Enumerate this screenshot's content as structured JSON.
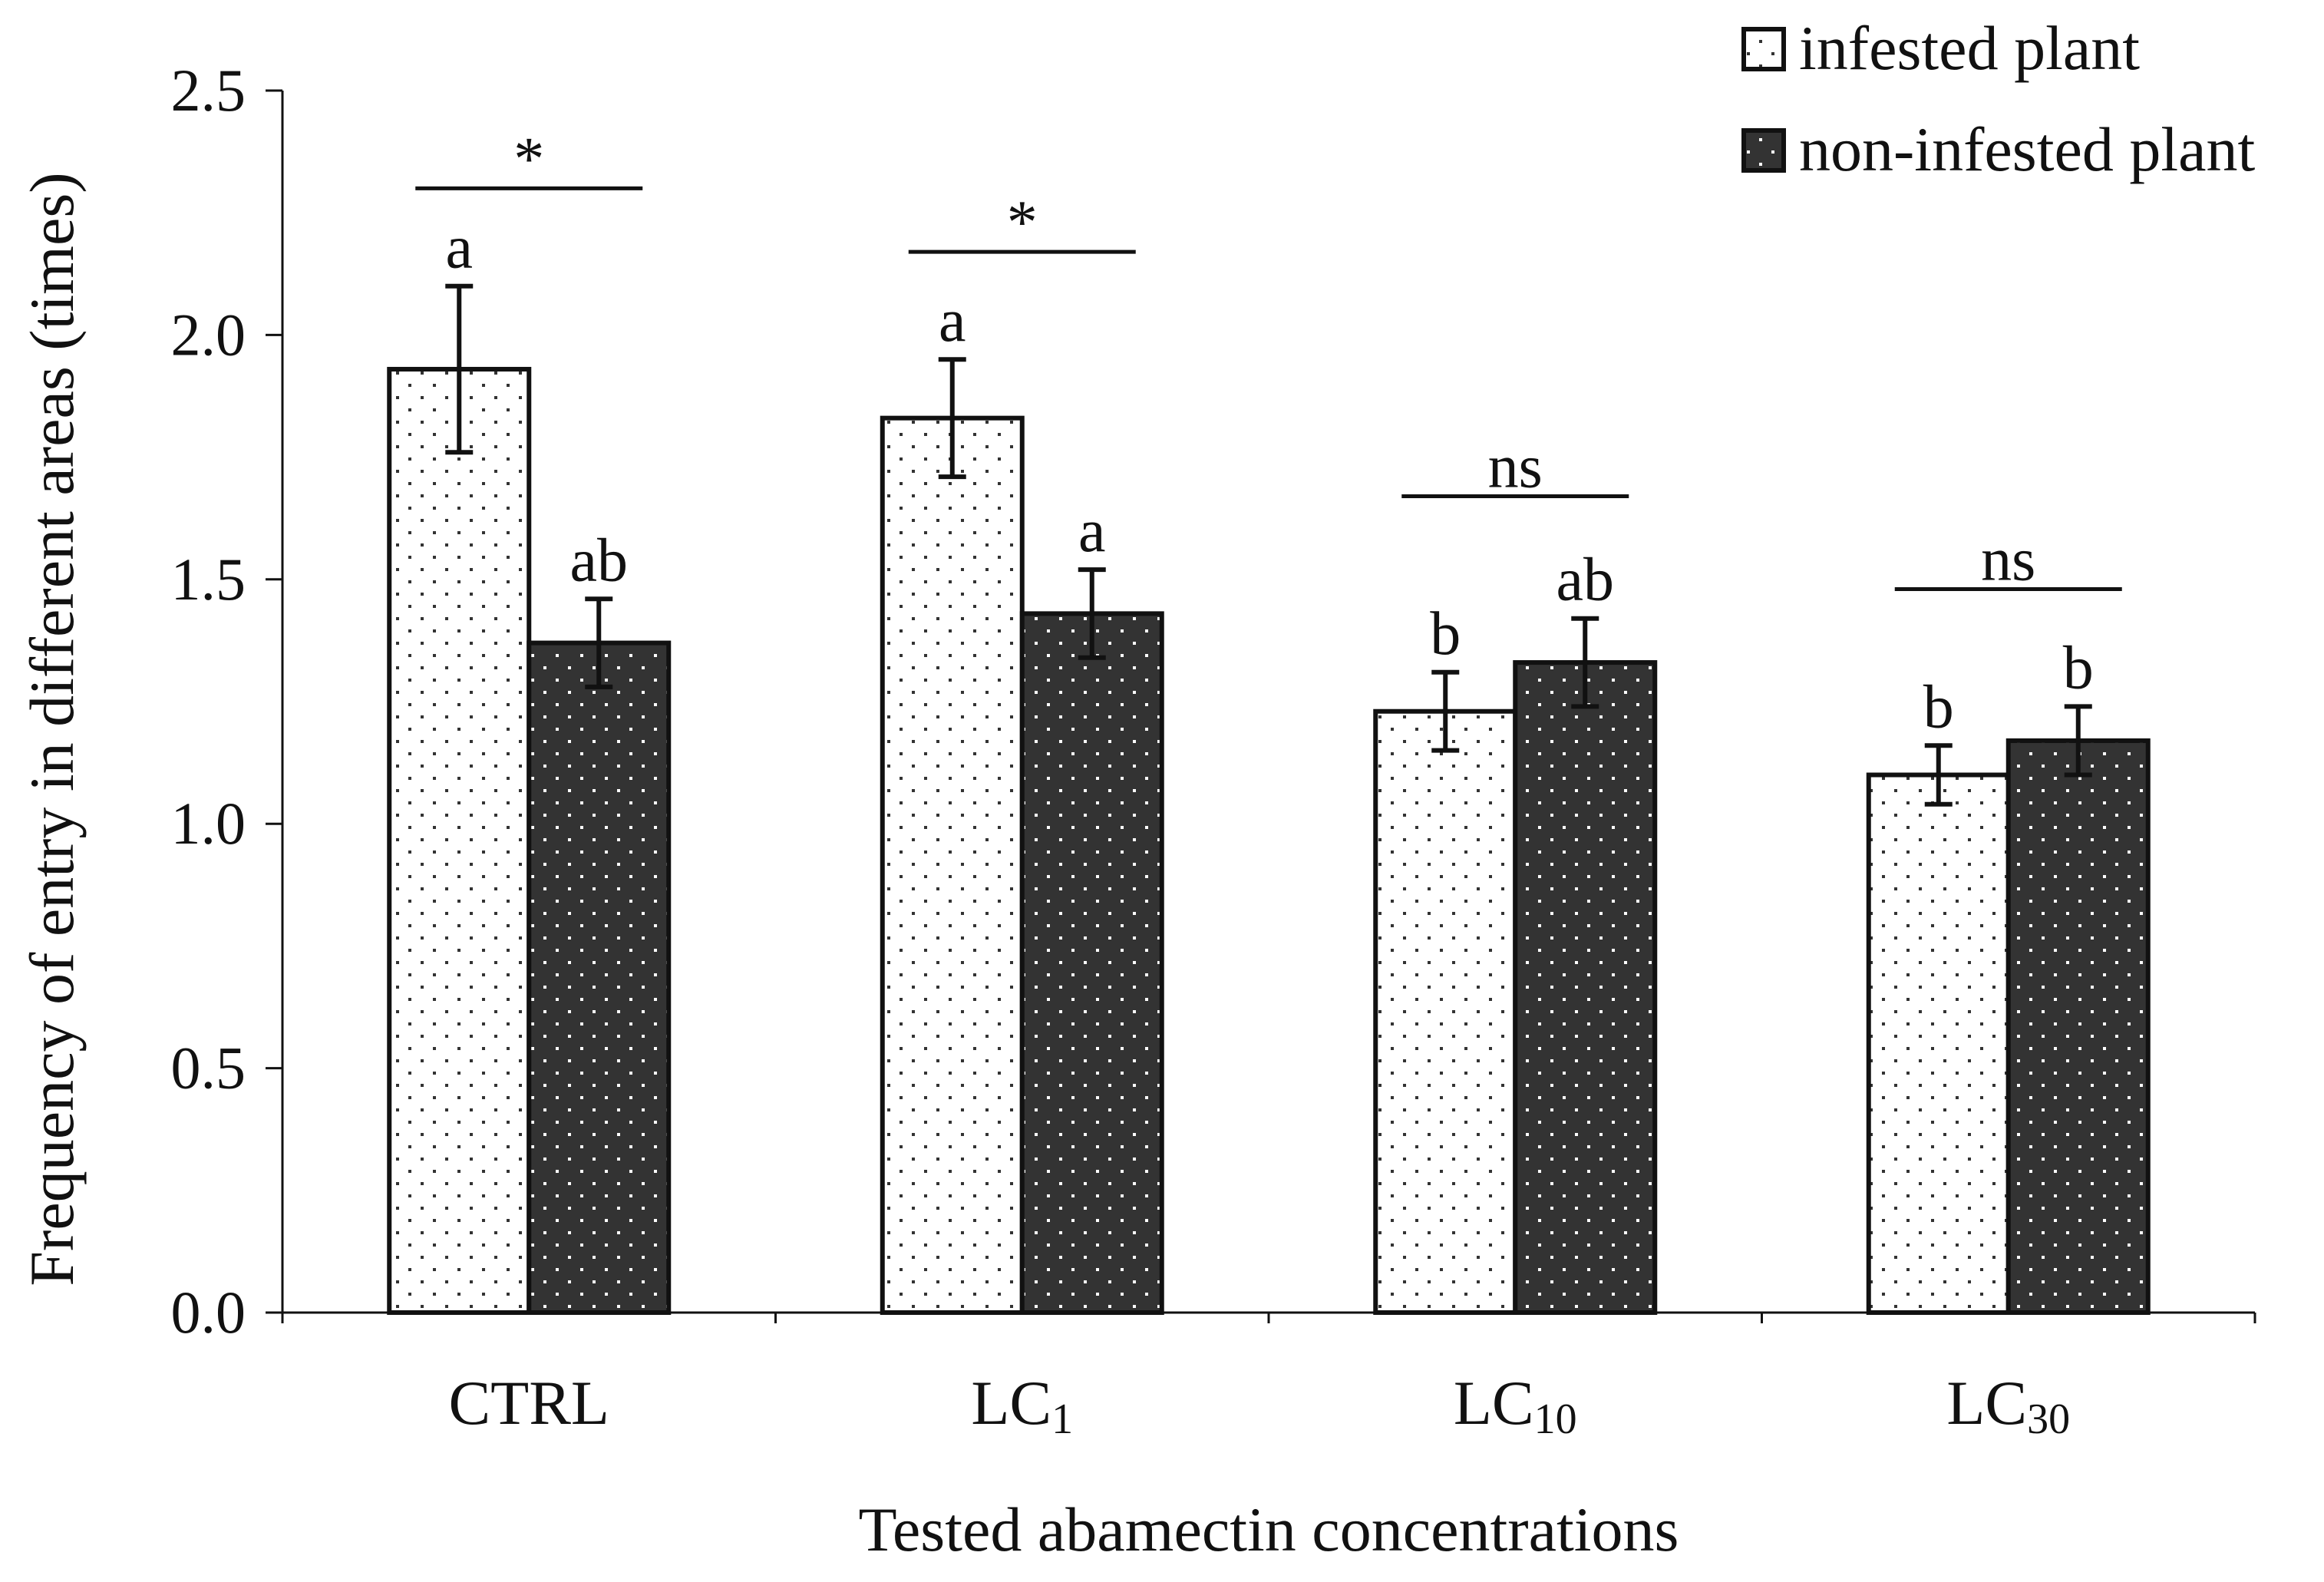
{
  "chart_data": {
    "type": "bar",
    "title": "",
    "xlabel": "Tested abamectin concentrations",
    "ylabel": "Frequency of entry in different areas (times)",
    "ylim": [
      0,
      2.5
    ],
    "yticks": [
      "0.0",
      "0.5",
      "1.0",
      "1.5",
      "2.0",
      "2.5"
    ],
    "grid": false,
    "legend_position": "top-right",
    "categories": [
      {
        "main": "CTRL",
        "sub": ""
      },
      {
        "main": "LC",
        "sub": "1"
      },
      {
        "main": "LC",
        "sub": "10"
      },
      {
        "main": "LC",
        "sub": "30"
      }
    ],
    "series": [
      {
        "name": "infested plant",
        "fill": "#ffffff",
        "dot": "#333333",
        "values": [
          1.93,
          1.83,
          1.23,
          1.1
        ],
        "errors": [
          0.17,
          0.12,
          0.08,
          0.06
        ],
        "letters": [
          "a",
          "a",
          "b",
          "b"
        ]
      },
      {
        "name": "non-infested plant",
        "fill": "#333333",
        "dot": "#ffffff",
        "values": [
          1.37,
          1.43,
          1.33,
          1.17
        ],
        "errors": [
          0.09,
          0.09,
          0.09,
          0.07
        ],
        "letters": [
          "ab",
          "a",
          "ab",
          "b"
        ]
      }
    ],
    "significance": [
      "*",
      "*",
      "ns",
      "ns"
    ],
    "significance_levels": [
      2.3,
      2.17,
      1.67,
      1.48
    ]
  }
}
